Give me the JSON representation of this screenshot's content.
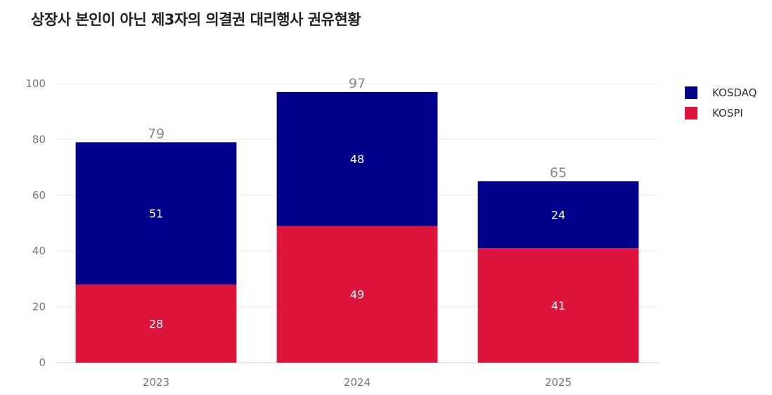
{
  "title": "상장사 본인이 아닌 제3자의 의결권 대리행사 권유현황",
  "chart_data": {
    "type": "bar",
    "stacked": true,
    "categories": [
      "2023",
      "2024",
      "2025"
    ],
    "series": [
      {
        "name": "KOSPI",
        "color": "#DC143C",
        "values": [
          28,
          49,
          41
        ]
      },
      {
        "name": "KOSDAQ",
        "color": "#00008B",
        "values": [
          51,
          48,
          24
        ]
      }
    ],
    "totals": [
      79,
      97,
      65
    ],
    "ylim": [
      0,
      100
    ],
    "yticks": [
      0,
      20,
      40,
      60,
      80,
      100
    ],
    "grid": true,
    "legend_position": "top-right",
    "legend": [
      {
        "label": "KOSDAQ",
        "color": "#00008B"
      },
      {
        "label": "KOSPI",
        "color": "#DC143C"
      }
    ]
  }
}
